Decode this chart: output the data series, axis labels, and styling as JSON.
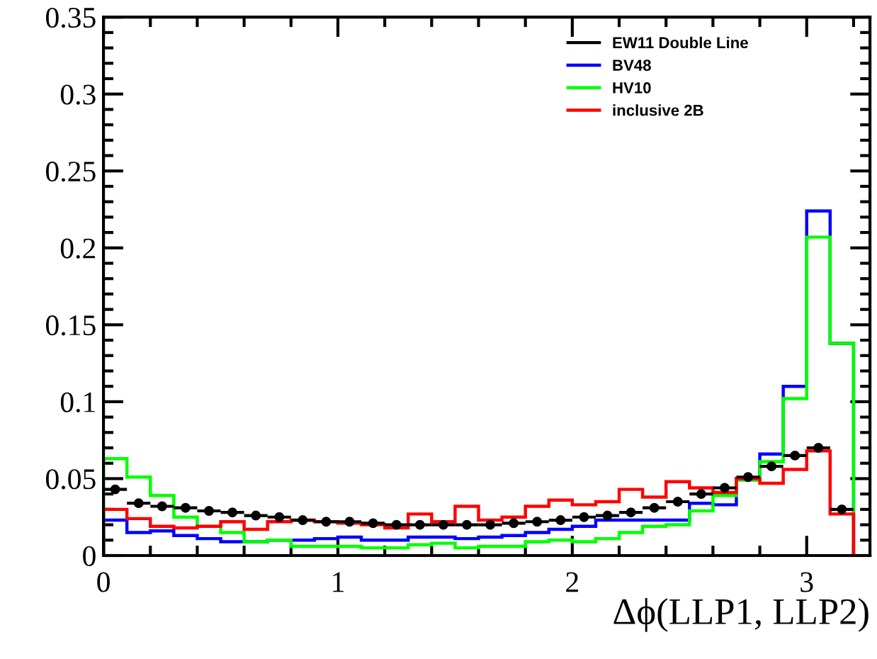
{
  "chart_data": {
    "type": "histogram",
    "xlabel": "Δϕ(LLP1, LLP2)",
    "bins": [
      0,
      0.1,
      0.2,
      0.3,
      0.4,
      0.5,
      0.6,
      0.7,
      0.8,
      0.9,
      1.0,
      1.1,
      1.2,
      1.3,
      1.4,
      1.5,
      1.6,
      1.7,
      1.8,
      1.9,
      2.0,
      2.1,
      2.2,
      2.3,
      2.4,
      2.5,
      2.6,
      2.7,
      2.8,
      2.9,
      3.0,
      3.1,
      3.2
    ],
    "series": [
      {
        "name": "EW11 Double Line",
        "type": "scatter",
        "color": "#000000",
        "marker": "circle",
        "x": [
          0.05,
          0.15,
          0.25,
          0.35,
          0.45,
          0.55,
          0.65,
          0.75,
          0.85,
          0.95,
          1.05,
          1.15,
          1.25,
          1.35,
          1.45,
          1.55,
          1.65,
          1.75,
          1.85,
          1.95,
          2.05,
          2.15,
          2.25,
          2.35,
          2.45,
          2.55,
          2.65,
          2.75,
          2.85,
          2.95,
          3.05,
          3.15
        ],
        "values": [
          0.043,
          0.034,
          0.032,
          0.031,
          0.029,
          0.028,
          0.026,
          0.025,
          0.023,
          0.022,
          0.022,
          0.021,
          0.02,
          0.02,
          0.02,
          0.02,
          0.02,
          0.021,
          0.022,
          0.023,
          0.025,
          0.026,
          0.028,
          0.031,
          0.035,
          0.04,
          0.044,
          0.051,
          0.058,
          0.065,
          0.07,
          0.03
        ],
        "xerrors": [
          0.05,
          0.05,
          0.05,
          0.05,
          0.05,
          0.05,
          0.05,
          0.05,
          0.05,
          0.05,
          0.05,
          0.05,
          0.05,
          0.05,
          0.05,
          0.05,
          0.05,
          0.05,
          0.05,
          0.05,
          0.05,
          0.05,
          0.05,
          0.05,
          0.05,
          0.05,
          0.05,
          0.05,
          0.05,
          0.05,
          0.05,
          0.05
        ]
      },
      {
        "name": "BV48",
        "color": "#0000ff",
        "values": [
          0.023,
          0.015,
          0.016,
          0.013,
          0.011,
          0.009,
          0.009,
          0.01,
          0.01,
          0.011,
          0.012,
          0.01,
          0.01,
          0.012,
          0.012,
          0.011,
          0.012,
          0.013,
          0.015,
          0.017,
          0.019,
          0.023,
          0.023,
          0.023,
          0.023,
          0.034,
          0.033,
          0.05,
          0.066,
          0.11,
          0.224,
          0.138
        ]
      },
      {
        "name": "HV10",
        "color": "#00ff00",
        "values": [
          0.063,
          0.051,
          0.039,
          0.025,
          0.019,
          0.015,
          0.009,
          0.01,
          0.006,
          0.006,
          0.006,
          0.005,
          0.005,
          0.007,
          0.008,
          0.005,
          0.006,
          0.006,
          0.009,
          0.01,
          0.009,
          0.011,
          0.015,
          0.019,
          0.02,
          0.029,
          0.039,
          0.049,
          0.061,
          0.102,
          0.207,
          0.138
        ]
      },
      {
        "name": "inclusive 2B",
        "color": "#ff0000",
        "values": [
          0.03,
          0.024,
          0.019,
          0.018,
          0.019,
          0.022,
          0.017,
          0.022,
          0.023,
          0.022,
          0.021,
          0.02,
          0.018,
          0.027,
          0.022,
          0.032,
          0.023,
          0.025,
          0.032,
          0.036,
          0.033,
          0.035,
          0.043,
          0.038,
          0.048,
          0.044,
          0.041,
          0.05,
          0.047,
          0.056,
          0.068,
          0.027
        ]
      }
    ],
    "xlim": [
      0,
      3.27
    ],
    "xticks": [
      0,
      1,
      2,
      3
    ],
    "ylim": [
      0,
      0.35
    ],
    "yticks": [
      0,
      0.05,
      0.1,
      0.15,
      0.2,
      0.25,
      0.3,
      0.35
    ],
    "grid": false,
    "legend": "top right"
  }
}
